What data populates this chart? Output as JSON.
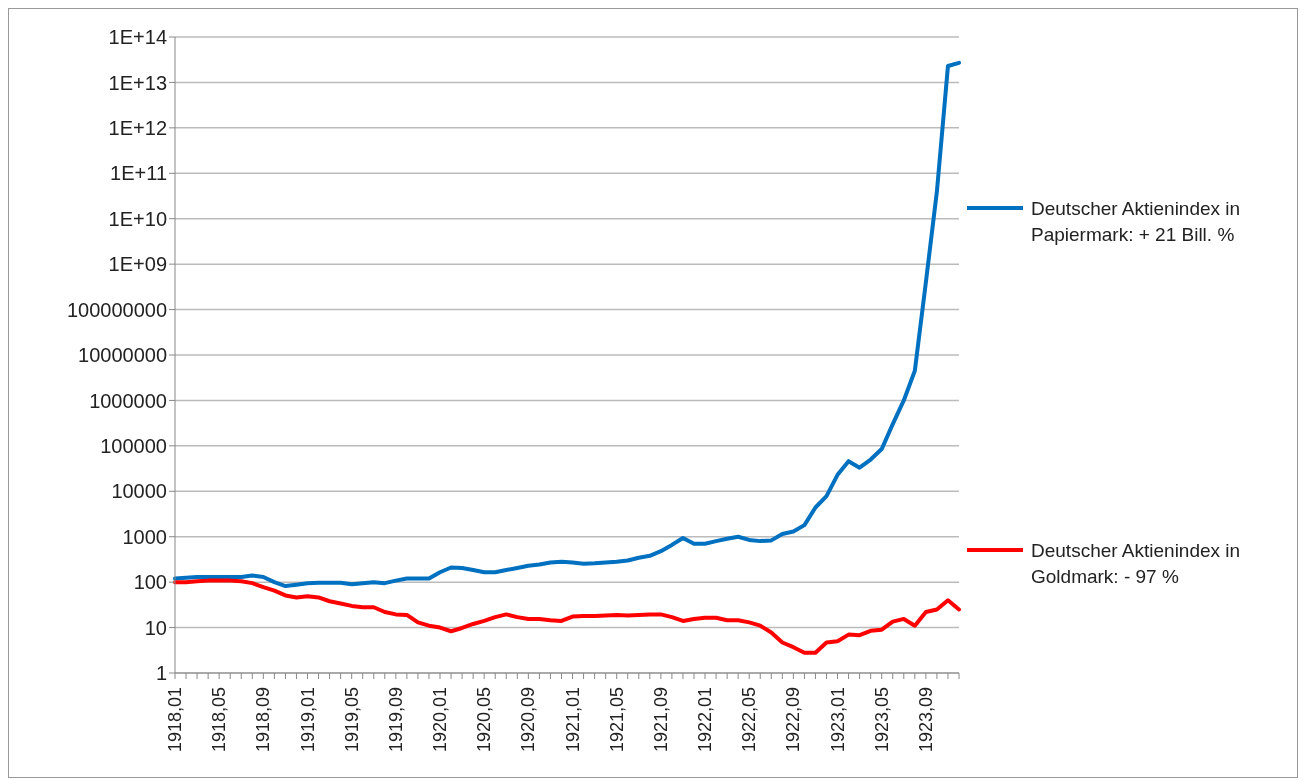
{
  "chart_data": {
    "type": "line",
    "categories": [
      "1918,01",
      null,
      null,
      null,
      "1918,05",
      null,
      null,
      null,
      "1918,09",
      null,
      null,
      null,
      "1919,01",
      null,
      null,
      null,
      "1919,05",
      null,
      null,
      null,
      "1919,09",
      null,
      null,
      null,
      "1920,01",
      null,
      null,
      null,
      "1920,05",
      null,
      null,
      null,
      "1920,09",
      null,
      null,
      null,
      "1921,01",
      null,
      null,
      null,
      "1921,05",
      null,
      null,
      null,
      "1921,09",
      null,
      null,
      null,
      "1922,01",
      null,
      null,
      null,
      "1922,05",
      null,
      null,
      null,
      "1922,09",
      null,
      null,
      null,
      "1923,01",
      null,
      null,
      null,
      "1923,05",
      null,
      null,
      null,
      "1923,09",
      null,
      null,
      null
    ],
    "series": [
      {
        "name": "Deutscher Aktienindex in Papiermark: + 21 Bill. %",
        "color": "#0070c0",
        "values": [
          120,
          125,
          130,
          130,
          130,
          130,
          130,
          140,
          130,
          100,
          82,
          88,
          95,
          97,
          97,
          97,
          90,
          95,
          100,
          95,
          108,
          120,
          120,
          120,
          165,
          210,
          205,
          185,
          165,
          165,
          185,
          205,
          230,
          245,
          270,
          280,
          270,
          255,
          260,
          270,
          280,
          300,
          345,
          380,
          480,
          660,
          940,
          700,
          700,
          800,
          900,
          1000,
          850,
          800,
          830,
          1150,
          1300,
          1800,
          4400,
          7800,
          23000,
          46000,
          33000,
          50000,
          85000,
          300000,
          1000000,
          4500000,
          400000000,
          40000000000,
          23000000000000,
          27000000000000
        ]
      },
      {
        "name": "Deutscher Aktienindex in Goldmark: - 97 %",
        "color": "#ff0000",
        "values": [
          100,
          100,
          105,
          108,
          108,
          108,
          105,
          95,
          78,
          65,
          51,
          46,
          49,
          46,
          38,
          34,
          30,
          28,
          28,
          22,
          19.5,
          19,
          13,
          11,
          10,
          8.3,
          9.8,
          12,
          14,
          17,
          19.5,
          17,
          15.5,
          15.5,
          14.5,
          14,
          17.5,
          18,
          18,
          18.5,
          19,
          18.5,
          19,
          19.5,
          19.5,
          17,
          14,
          15.5,
          16.5,
          16.5,
          14.5,
          14.5,
          13,
          11,
          7.8,
          4.7,
          3.7,
          2.8,
          2.8,
          4.7,
          5,
          7,
          6.8,
          8.5,
          9,
          13.5,
          15.5,
          11,
          22,
          25,
          40,
          25
        ]
      }
    ],
    "log": "y",
    "ylim": [
      1,
      100000000000000
    ],
    "yticks": [
      1,
      10,
      100,
      1000,
      10000,
      100000,
      1000000,
      10000000,
      100000000,
      {
        "value": 1000000000,
        "label": "1E+09"
      },
      {
        "value": 10000000000,
        "label": "1E+10"
      },
      {
        "value": 100000000000,
        "label": "1E+11"
      },
      {
        "value": 1000000000000,
        "label": "1E+12"
      },
      {
        "value": 10000000000000,
        "label": "1E+13"
      },
      {
        "value": 100000000000000,
        "label": "1E+14"
      }
    ],
    "grid": "y",
    "legend": "right",
    "marker": "none",
    "line_style": "solid"
  }
}
